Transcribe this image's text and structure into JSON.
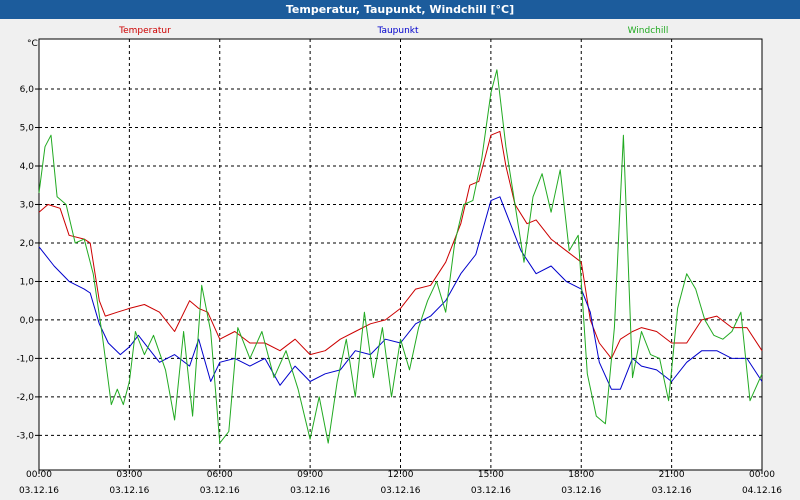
{
  "window": {
    "title": "Temperatur, Taupunkt, Windchill [°C]"
  },
  "chart_data": {
    "type": "line",
    "title": "Temperatur, Taupunkt, Windchill [°C]",
    "ylabel": "°C",
    "xlabel": "",
    "ylim": [
      -3.9,
      7.3
    ],
    "xlim": [
      0,
      24
    ],
    "grid": true,
    "y_ticks": [
      -3.0,
      -2.0,
      -1.0,
      0.0,
      1.0,
      2.0,
      3.0,
      4.0,
      5.0,
      6.0
    ],
    "y_tick_labels": [
      "-3,0",
      "-2,0",
      "-1,0",
      "0,0",
      "1,0",
      "2,0",
      "3,0",
      "4,0",
      "5,0",
      "6,0"
    ],
    "x_ticks": [
      {
        "x": 0,
        "time": "00:00",
        "date": "03.12.16"
      },
      {
        "x": 3,
        "time": "03:00",
        "date": "03.12.16"
      },
      {
        "x": 6,
        "time": "06:00",
        "date": "03.12.16"
      },
      {
        "x": 9,
        "time": "09:00",
        "date": "03.12.16"
      },
      {
        "x": 12,
        "time": "12:00",
        "date": "03.12.16"
      },
      {
        "x": 15,
        "time": "15:00",
        "date": "03.12.16"
      },
      {
        "x": 18,
        "time": "18:00",
        "date": "03.12.16"
      },
      {
        "x": 21,
        "time": "21:00",
        "date": "03.12.16"
      },
      {
        "x": 24,
        "time": "00:00",
        "date": "04.12.16"
      }
    ],
    "series": [
      {
        "name": "Temperatur",
        "color": "#cc0000",
        "points": [
          [
            0.0,
            2.8
          ],
          [
            0.3,
            3.0
          ],
          [
            0.7,
            2.9
          ],
          [
            1.0,
            2.2
          ],
          [
            1.5,
            2.1
          ],
          [
            1.7,
            2.0
          ],
          [
            2.0,
            0.5
          ],
          [
            2.2,
            0.1
          ],
          [
            2.6,
            0.2
          ],
          [
            3.0,
            0.3
          ],
          [
            3.5,
            0.4
          ],
          [
            4.0,
            0.2
          ],
          [
            4.5,
            -0.3
          ],
          [
            5.0,
            0.5
          ],
          [
            5.3,
            0.3
          ],
          [
            5.6,
            0.2
          ],
          [
            6.0,
            -0.5
          ],
          [
            6.5,
            -0.3
          ],
          [
            7.0,
            -0.6
          ],
          [
            7.5,
            -0.6
          ],
          [
            8.0,
            -0.8
          ],
          [
            8.5,
            -0.5
          ],
          [
            9.0,
            -0.9
          ],
          [
            9.5,
            -0.8
          ],
          [
            10.0,
            -0.5
          ],
          [
            10.5,
            -0.3
          ],
          [
            11.0,
            -0.1
          ],
          [
            11.5,
            0.0
          ],
          [
            12.0,
            0.3
          ],
          [
            12.5,
            0.8
          ],
          [
            13.0,
            0.9
          ],
          [
            13.5,
            1.5
          ],
          [
            14.0,
            2.5
          ],
          [
            14.3,
            3.5
          ],
          [
            14.6,
            3.6
          ],
          [
            15.0,
            4.8
          ],
          [
            15.3,
            4.9
          ],
          [
            15.5,
            4.0
          ],
          [
            15.8,
            3.0
          ],
          [
            16.2,
            2.5
          ],
          [
            16.5,
            2.6
          ],
          [
            17.0,
            2.1
          ],
          [
            17.5,
            1.8
          ],
          [
            18.0,
            1.5
          ],
          [
            18.3,
            0.0
          ],
          [
            18.6,
            -0.6
          ],
          [
            19.0,
            -1.0
          ],
          [
            19.3,
            -0.5
          ],
          [
            19.7,
            -0.3
          ],
          [
            20.0,
            -0.2
          ],
          [
            20.5,
            -0.3
          ],
          [
            21.0,
            -0.6
          ],
          [
            21.5,
            -0.6
          ],
          [
            22.0,
            0.0
          ],
          [
            22.5,
            0.1
          ],
          [
            23.0,
            -0.2
          ],
          [
            23.5,
            -0.2
          ],
          [
            24.0,
            -0.8
          ]
        ]
      },
      {
        "name": "Taupunkt",
        "color": "#0000cc",
        "points": [
          [
            0.0,
            1.9
          ],
          [
            0.5,
            1.4
          ],
          [
            1.0,
            1.0
          ],
          [
            1.5,
            0.8
          ],
          [
            1.7,
            0.7
          ],
          [
            2.0,
            -0.1
          ],
          [
            2.3,
            -0.6
          ],
          [
            2.7,
            -0.9
          ],
          [
            3.0,
            -0.7
          ],
          [
            3.3,
            -0.4
          ],
          [
            3.6,
            -0.7
          ],
          [
            4.0,
            -1.1
          ],
          [
            4.5,
            -0.9
          ],
          [
            5.0,
            -1.2
          ],
          [
            5.3,
            -0.5
          ],
          [
            5.7,
            -1.6
          ],
          [
            6.0,
            -1.1
          ],
          [
            6.5,
            -1.0
          ],
          [
            7.0,
            -1.2
          ],
          [
            7.5,
            -1.0
          ],
          [
            8.0,
            -1.7
          ],
          [
            8.5,
            -1.2
          ],
          [
            9.0,
            -1.6
          ],
          [
            9.5,
            -1.4
          ],
          [
            10.0,
            -1.3
          ],
          [
            10.5,
            -0.8
          ],
          [
            11.0,
            -0.9
          ],
          [
            11.5,
            -0.5
          ],
          [
            12.0,
            -0.6
          ],
          [
            12.5,
            -0.1
          ],
          [
            13.0,
            0.1
          ],
          [
            13.5,
            0.5
          ],
          [
            14.0,
            1.2
          ],
          [
            14.5,
            1.7
          ],
          [
            15.0,
            3.1
          ],
          [
            15.3,
            3.2
          ],
          [
            15.6,
            2.6
          ],
          [
            16.0,
            1.8
          ],
          [
            16.5,
            1.2
          ],
          [
            17.0,
            1.4
          ],
          [
            17.5,
            1.0
          ],
          [
            18.0,
            0.8
          ],
          [
            18.3,
            0.2
          ],
          [
            18.6,
            -1.1
          ],
          [
            19.0,
            -1.8
          ],
          [
            19.3,
            -1.8
          ],
          [
            19.7,
            -1.0
          ],
          [
            20.0,
            -1.2
          ],
          [
            20.5,
            -1.3
          ],
          [
            21.0,
            -1.6
          ],
          [
            21.5,
            -1.1
          ],
          [
            22.0,
            -0.8
          ],
          [
            22.5,
            -0.8
          ],
          [
            23.0,
            -1.0
          ],
          [
            23.5,
            -1.0
          ],
          [
            24.0,
            -1.6
          ]
        ]
      },
      {
        "name": "Windchill",
        "color": "#22aa22",
        "points": [
          [
            0.0,
            3.3
          ],
          [
            0.2,
            4.5
          ],
          [
            0.4,
            4.8
          ],
          [
            0.6,
            3.2
          ],
          [
            0.9,
            3.0
          ],
          [
            1.2,
            2.0
          ],
          [
            1.5,
            2.1
          ],
          [
            1.8,
            1.2
          ],
          [
            2.1,
            -0.4
          ],
          [
            2.4,
            -2.2
          ],
          [
            2.6,
            -1.8
          ],
          [
            2.8,
            -2.2
          ],
          [
            3.0,
            -1.6
          ],
          [
            3.2,
            -0.3
          ],
          [
            3.5,
            -0.9
          ],
          [
            3.8,
            -0.4
          ],
          [
            4.2,
            -1.3
          ],
          [
            4.5,
            -2.6
          ],
          [
            4.8,
            -0.3
          ],
          [
            5.1,
            -2.5
          ],
          [
            5.4,
            0.9
          ],
          [
            5.7,
            -0.3
          ],
          [
            6.0,
            -3.2
          ],
          [
            6.3,
            -2.9
          ],
          [
            6.6,
            -0.2
          ],
          [
            7.0,
            -1.0
          ],
          [
            7.4,
            -0.3
          ],
          [
            7.8,
            -1.5
          ],
          [
            8.2,
            -0.8
          ],
          [
            8.6,
            -1.8
          ],
          [
            9.0,
            -3.1
          ],
          [
            9.3,
            -2.0
          ],
          [
            9.6,
            -3.2
          ],
          [
            9.9,
            -1.6
          ],
          [
            10.2,
            -0.5
          ],
          [
            10.5,
            -2.0
          ],
          [
            10.8,
            0.2
          ],
          [
            11.1,
            -1.5
          ],
          [
            11.4,
            -0.2
          ],
          [
            11.7,
            -2.0
          ],
          [
            12.0,
            -0.5
          ],
          [
            12.3,
            -1.3
          ],
          [
            12.6,
            -0.2
          ],
          [
            12.9,
            0.5
          ],
          [
            13.2,
            1.0
          ],
          [
            13.5,
            0.2
          ],
          [
            13.8,
            2.0
          ],
          [
            14.1,
            3.0
          ],
          [
            14.4,
            3.1
          ],
          [
            14.7,
            4.2
          ],
          [
            15.0,
            5.9
          ],
          [
            15.2,
            6.5
          ],
          [
            15.5,
            4.5
          ],
          [
            15.8,
            3.0
          ],
          [
            16.1,
            1.5
          ],
          [
            16.4,
            3.2
          ],
          [
            16.7,
            3.8
          ],
          [
            17.0,
            2.8
          ],
          [
            17.3,
            3.9
          ],
          [
            17.6,
            1.8
          ],
          [
            17.9,
            2.2
          ],
          [
            18.2,
            -1.4
          ],
          [
            18.5,
            -2.5
          ],
          [
            18.8,
            -2.7
          ],
          [
            19.1,
            -0.2
          ],
          [
            19.4,
            4.8
          ],
          [
            19.7,
            -1.5
          ],
          [
            20.0,
            -0.3
          ],
          [
            20.3,
            -0.9
          ],
          [
            20.6,
            -1.0
          ],
          [
            20.9,
            -2.1
          ],
          [
            21.2,
            0.3
          ],
          [
            21.5,
            1.2
          ],
          [
            21.8,
            0.8
          ],
          [
            22.1,
            0.0
          ],
          [
            22.4,
            -0.4
          ],
          [
            22.7,
            -0.5
          ],
          [
            23.0,
            -0.3
          ],
          [
            23.3,
            0.2
          ],
          [
            23.6,
            -2.1
          ],
          [
            24.0,
            -1.4
          ]
        ]
      }
    ]
  }
}
